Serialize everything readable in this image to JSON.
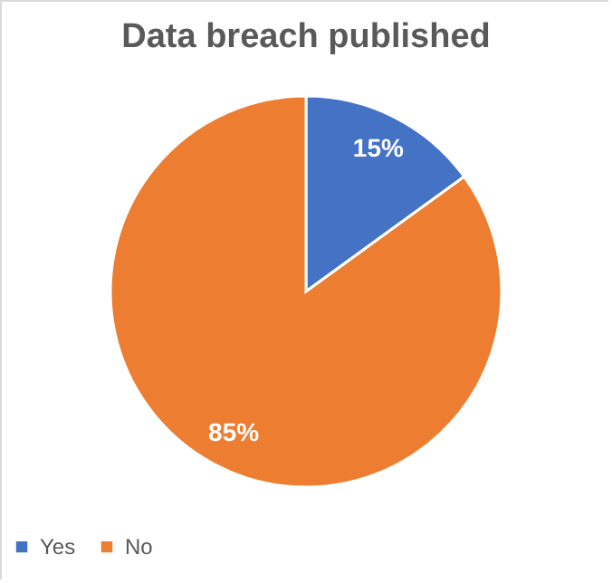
{
  "chart_data": {
    "type": "pie",
    "title": "Data breach published",
    "categories": [
      "Yes",
      "No"
    ],
    "values": [
      15,
      85
    ],
    "colors": [
      "#4472c4",
      "#ed7d31"
    ],
    "value_labels": [
      "15%",
      "85%"
    ],
    "legend": "bottom"
  }
}
